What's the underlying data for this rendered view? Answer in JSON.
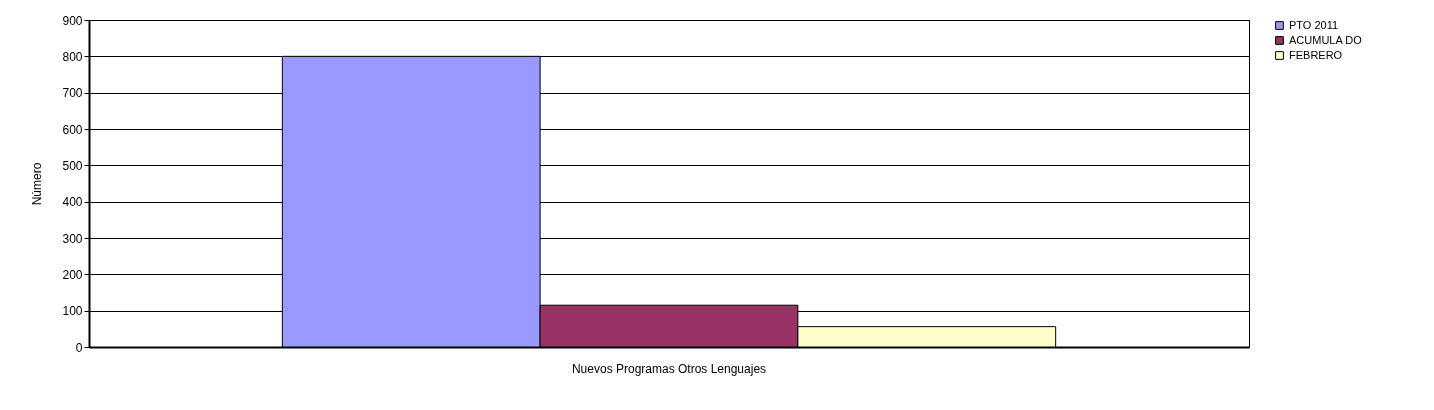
{
  "chart_data": {
    "type": "bar",
    "ylabel": "Número",
    "categories": [
      "Nuevos Programas Otros  Lenguajes"
    ],
    "series": [
      {
        "name": "PTO  2011",
        "color": "#9999ff",
        "values": [
          800
        ]
      },
      {
        "name": "ACUMULA DO",
        "color": "#993366",
        "values": [
          115
        ]
      },
      {
        "name": "FEBRERO",
        "color": "#ffffcc",
        "values": [
          56
        ]
      }
    ],
    "ylim": [
      0,
      900
    ],
    "yticks": [
      0,
      100,
      200,
      300,
      400,
      500,
      600,
      700,
      800,
      900
    ],
    "grid": "y",
    "legend": "right"
  }
}
